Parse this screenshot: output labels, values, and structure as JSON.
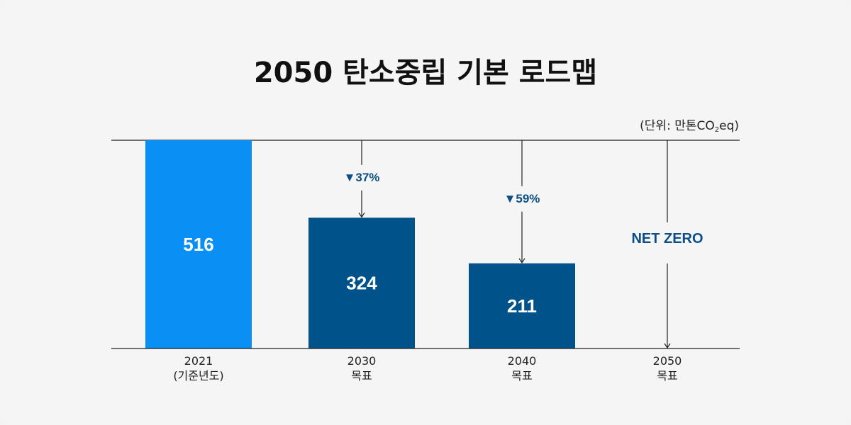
{
  "title": "2050 탄소중립 기본 로드맵",
  "unit": {
    "prefix": "(단위: 만톤CO",
    "subscript": "2",
    "suffix": "eq)"
  },
  "colors": {
    "base_bar": "#0a8ff5",
    "target_bar": "#00528a",
    "accent_text": "#0d4e86"
  },
  "chart_data": {
    "type": "bar",
    "title": "2050 탄소중립 기본 로드맵",
    "categories": [
      "2021",
      "2030",
      "2040",
      "2050"
    ],
    "category_sublabels": [
      "(기준년도)",
      "목표",
      "목표",
      "목표"
    ],
    "values": [
      516,
      324,
      211,
      0
    ],
    "value_labels": [
      "516",
      "324",
      "211",
      ""
    ],
    "reductions": [
      "",
      "▼37%",
      "▼59%",
      ""
    ],
    "final_label": "NET ZERO",
    "ylim": [
      0,
      516
    ],
    "grid": false,
    "legend": "none"
  }
}
